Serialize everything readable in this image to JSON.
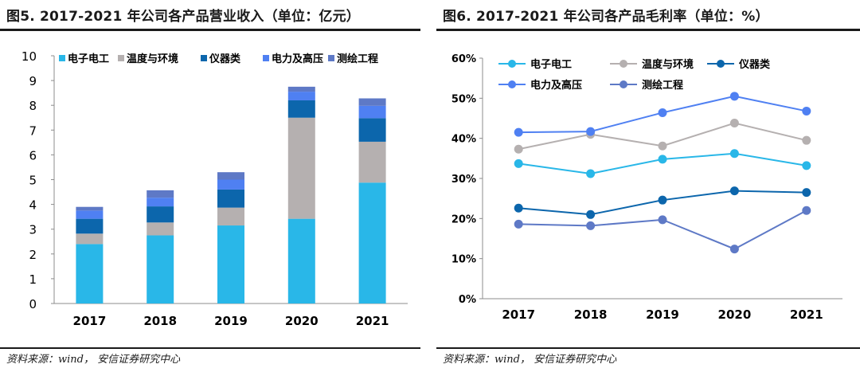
{
  "panels": {
    "left": {
      "title": "图5. 2017-2021 年公司各产品营业收入（单位：亿元）",
      "source": "资料来源：wind， 安信证券研究中心"
    },
    "right": {
      "title": "图6. 2017-2021 年公司各产品毛利率（单位：%）",
      "source": "资料来源：wind， 安信证券研究中心"
    }
  },
  "chart_data": [
    {
      "type": "bar",
      "stacked": true,
      "categories": [
        "2017",
        "2018",
        "2019",
        "2020",
        "2021"
      ],
      "ylim": [
        0,
        10
      ],
      "yticks": [
        "0",
        "1",
        "2",
        "3",
        "4",
        "5",
        "6",
        "7",
        "8",
        "9",
        "10"
      ],
      "legend_position": "top",
      "series": [
        {
          "name": "电子电工",
          "color": "#29b7e8",
          "values": [
            2.4,
            2.75,
            3.15,
            3.42,
            4.88
          ]
        },
        {
          "name": "温度与环境",
          "color": "#b5b0b0",
          "values": [
            0.42,
            0.52,
            0.72,
            4.08,
            1.65
          ]
        },
        {
          "name": "仪器类",
          "color": "#0c66ac",
          "values": [
            0.6,
            0.65,
            0.73,
            0.7,
            0.95
          ]
        },
        {
          "name": "电力及高压",
          "color": "#4f80f2",
          "values": [
            0.33,
            0.35,
            0.4,
            0.35,
            0.5
          ]
        },
        {
          "name": "测绘工程",
          "color": "#5e79c6",
          "values": [
            0.15,
            0.3,
            0.3,
            0.2,
            0.3
          ]
        }
      ]
    },
    {
      "type": "line",
      "categories": [
        "2017",
        "2018",
        "2019",
        "2020",
        "2021"
      ],
      "ylim": [
        0,
        60
      ],
      "yticks": [
        "0%",
        "10%",
        "20%",
        "30%",
        "40%",
        "50%",
        "60%"
      ],
      "legend_position": "top",
      "series": [
        {
          "name": "电子电工",
          "color": "#29b7e8",
          "values": [
            33.7,
            31.2,
            34.8,
            36.2,
            33.2
          ]
        },
        {
          "name": "温度与环境",
          "color": "#b5b0b0",
          "values": [
            37.3,
            41.0,
            38.1,
            43.8,
            39.5
          ]
        },
        {
          "name": "仪器类",
          "color": "#0c66ac",
          "values": [
            22.6,
            21.0,
            24.6,
            26.9,
            26.5
          ]
        },
        {
          "name": "电力及高压",
          "color": "#4f80f2",
          "values": [
            41.5,
            41.7,
            46.4,
            50.5,
            46.8
          ]
        },
        {
          "name": "测绘工程",
          "color": "#5e79c6",
          "values": [
            18.6,
            18.2,
            19.7,
            12.4,
            22.0
          ]
        }
      ]
    }
  ]
}
